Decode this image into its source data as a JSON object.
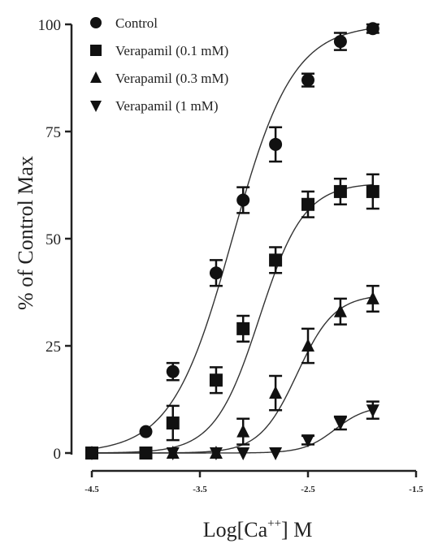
{
  "chart_data": {
    "type": "scatter",
    "xlabel": "Log[Ca",
    "xlabel_superscript": "++",
    "xlabel_suffix": "] M",
    "ylabel": "% of Control Max",
    "xlim": [
      -4.5,
      -1.5
    ],
    "ylim": [
      0,
      100
    ],
    "x_ticks": [
      "-4.5",
      "-3.5",
      "-2.5",
      "-1.5"
    ],
    "y_ticks": [
      "0",
      "25",
      "50",
      "75",
      "100"
    ],
    "grid": false,
    "legend_position": "top-left",
    "series": [
      {
        "name": "Control",
        "marker": "circle",
        "x": [
          -4.5,
          -4.0,
          -3.75,
          -3.35,
          -3.1,
          -2.8,
          -2.5,
          -2.2,
          -1.9
        ],
        "y": [
          0,
          5,
          19,
          42,
          59,
          72,
          87,
          96,
          99
        ],
        "err": [
          0,
          0,
          2,
          3,
          3,
          4,
          1.5,
          2,
          1
        ],
        "fit": {
          "bottom": 0,
          "top": 100,
          "logEC50": -3.2,
          "hill": 1.55
        }
      },
      {
        "name": "Verapamil (0.1 mM)",
        "marker": "square",
        "x": [
          -4.5,
          -4.0,
          -3.75,
          -3.35,
          -3.1,
          -2.8,
          -2.5,
          -2.2,
          -1.9
        ],
        "y": [
          0,
          0,
          7,
          17,
          29,
          45,
          58,
          61,
          61
        ],
        "err": [
          0,
          0,
          4,
          3,
          3,
          3,
          3,
          3,
          4
        ],
        "fit": {
          "bottom": 0,
          "top": 63,
          "logEC50": -2.95,
          "hill": 2.1
        }
      },
      {
        "name": "Verapamil (0.3 mM)",
        "marker": "triangle-up",
        "x": [
          -4.5,
          -3.75,
          -3.35,
          -3.1,
          -2.8,
          -2.5,
          -2.2,
          -1.9
        ],
        "y": [
          0,
          0,
          0,
          5,
          14,
          25,
          33,
          36
        ],
        "err": [
          0,
          0,
          0,
          3,
          4,
          4,
          3,
          3
        ],
        "fit": {
          "bottom": 0,
          "top": 37,
          "logEC50": -2.6,
          "hill": 2.5
        }
      },
      {
        "name": "Verapamil (1 mM)",
        "marker": "triangle-down",
        "x": [
          -4.5,
          -3.75,
          -3.35,
          -3.1,
          -2.8,
          -2.5,
          -2.2,
          -1.9
        ],
        "y": [
          0,
          0,
          0,
          0,
          0,
          3,
          7,
          10
        ],
        "err": [
          0,
          0,
          0,
          0,
          0,
          1,
          1.5,
          2
        ],
        "fit": {
          "bottom": 0,
          "top": 11,
          "logEC50": -2.25,
          "hill": 3.0
        }
      }
    ]
  }
}
